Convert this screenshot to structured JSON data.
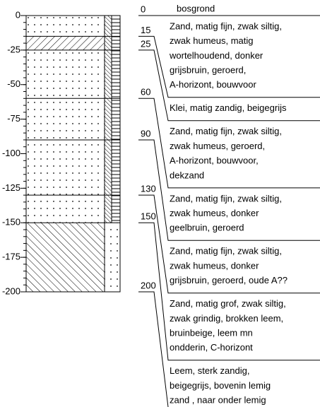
{
  "depth_axis": {
    "ticks": [
      0,
      -25,
      -50,
      -75,
      -100,
      -125,
      -150,
      -175,
      -200
    ]
  },
  "boundaries": [
    0,
    15,
    25,
    60,
    90,
    130,
    150,
    200
  ],
  "descriptions": [
    [
      "bosgrond"
    ],
    [
      "Zand, matig fijn, zwak siltig,",
      "zwak humeus, matig",
      "wortelhoudend, donker",
      "grijsbruin, geroerd,",
      "A-horizont, bouwvoor"
    ],
    [
      "Klei, matig zandig, beigegrijs"
    ],
    [
      "Zand, matig fijn, zwak siltig,",
      "zwak humeus, geroerd,",
      "A-horizont, bouwvoor,",
      "dekzand"
    ],
    [
      "Zand, matig fijn, zwak siltig,",
      "zwak humeus, donker",
      "geelbruin, geroerd"
    ],
    [
      "Zand, matig fijn, zwak siltig,",
      "zwak humeus, donker",
      "grijsbruin, geroerd, oude A??"
    ],
    [
      "Zand, matig grof, zwak siltig,",
      "zwak grindig, brokken leem,",
      "bruinbeige, leem mn",
      "ondderin, C-horizont"
    ],
    [
      "Leem, sterk zandig,",
      "beigegrijs, bovenin lemig",
      "zand , naar onder lemig"
    ]
  ]
}
